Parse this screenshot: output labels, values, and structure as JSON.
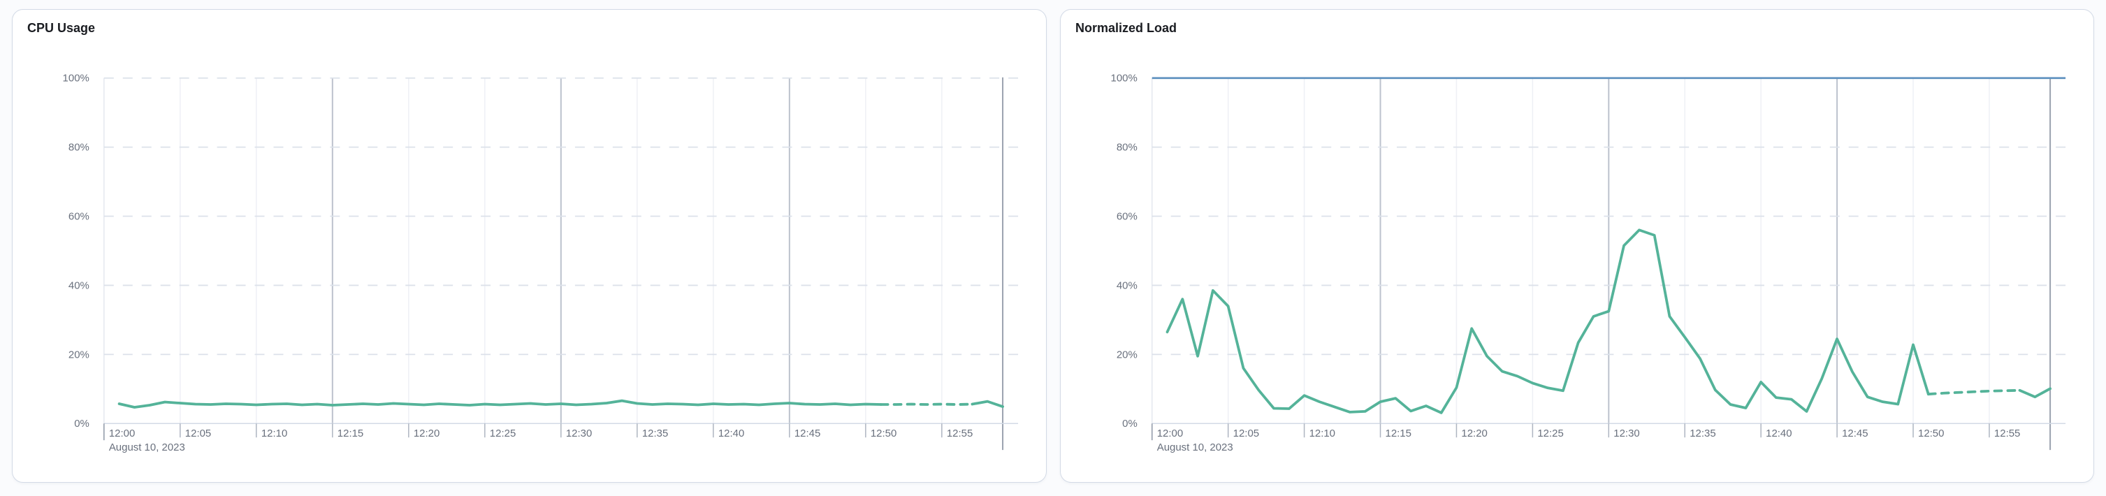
{
  "page": {
    "background_color": "#fafbfd",
    "panel_border_color": "#d3dae6",
    "panel_background_color": "#ffffff"
  },
  "chart_data": [
    {
      "type": "line",
      "title": "CPU Usage",
      "date_label": "August 10, 2023",
      "ylim": [
        0,
        100
      ],
      "legend": "none",
      "grid": "horizontal dashed gridlines every 20%; vertical gridlines every 5 minutes, darker at quarter hours and chart end",
      "y_axis": {
        "tick_values": [
          0,
          20,
          40,
          60,
          80,
          100
        ],
        "tick_labels": [
          "0%",
          "20%",
          "40%",
          "60%",
          "80%",
          "100%"
        ]
      },
      "x_axis": {
        "tick_minutes": [
          0,
          5,
          10,
          15,
          20,
          25,
          30,
          35,
          40,
          45,
          50,
          55
        ],
        "tick_labels": [
          "12:00",
          "12:05",
          "12:10",
          "12:15",
          "12:20",
          "12:25",
          "12:30",
          "12:35",
          "12:40",
          "12:45",
          "12:50",
          "12:55"
        ],
        "major_gridline_minutes": [
          15,
          30,
          45
        ],
        "end_line_minute": 59
      },
      "series": [
        {
          "name": "CPU Usage",
          "color": "#54b399",
          "x_minutes_after_1200": [
            1,
            2,
            3,
            4,
            5,
            6,
            7,
            8,
            9,
            10,
            11,
            12,
            13,
            14,
            15,
            16,
            17,
            18,
            19,
            20,
            21,
            22,
            23,
            24,
            25,
            26,
            27,
            28,
            29,
            30,
            31,
            32,
            33,
            34,
            35,
            36,
            37,
            38,
            39,
            40,
            41,
            42,
            43,
            44,
            45,
            46,
            47,
            48,
            49,
            50,
            51,
            52,
            53,
            54,
            55,
            56,
            57,
            58,
            59
          ],
          "values_percent": [
            5.7,
            4.7,
            5.3,
            6.2,
            5.9,
            5.6,
            5.5,
            5.7,
            5.6,
            5.4,
            5.6,
            5.7,
            5.4,
            5.6,
            5.3,
            5.5,
            5.7,
            5.5,
            5.8,
            5.6,
            5.4,
            5.7,
            5.5,
            5.3,
            5.6,
            5.4,
            5.6,
            5.8,
            5.5,
            5.7,
            5.4,
            5.6,
            5.9,
            6.6,
            5.8,
            5.5,
            5.7,
            5.6,
            5.4,
            5.7,
            5.5,
            5.6,
            5.4,
            5.7,
            5.9,
            5.6,
            5.5,
            5.7,
            5.4,
            5.6,
            5.5,
            5.5,
            5.6,
            5.5,
            5.6,
            5.5,
            5.6,
            6.4,
            4.9
          ],
          "dashed_segment_minutes": [
            51,
            57
          ]
        }
      ]
    },
    {
      "type": "line",
      "title": "Normalized Load",
      "date_label": "August 10, 2023",
      "ylim": [
        0,
        100
      ],
      "legend": "none",
      "grid": "horizontal dashed gridlines every 20%; vertical gridlines every 5 minutes, darker at quarter hours and chart end",
      "threshold_line": {
        "value_percent": 100,
        "color": "#6092c0"
      },
      "y_axis": {
        "tick_values": [
          0,
          20,
          40,
          60,
          80,
          100
        ],
        "tick_labels": [
          "0%",
          "20%",
          "40%",
          "60%",
          "80%",
          "100%"
        ]
      },
      "x_axis": {
        "tick_minutes": [
          0,
          5,
          10,
          15,
          20,
          25,
          30,
          35,
          40,
          45,
          50,
          55
        ],
        "tick_labels": [
          "12:00",
          "12:05",
          "12:10",
          "12:15",
          "12:20",
          "12:25",
          "12:30",
          "12:35",
          "12:40",
          "12:45",
          "12:50",
          "12:55"
        ],
        "major_gridline_minutes": [
          15,
          30,
          45
        ],
        "end_line_minute": 59
      },
      "series": [
        {
          "name": "Normalized Load",
          "color": "#54b399",
          "x_minutes_after_1200": [
            1,
            2,
            3,
            4,
            5,
            6,
            7,
            8,
            9,
            10,
            11,
            12,
            13,
            14,
            15,
            16,
            17,
            18,
            19,
            20,
            21,
            22,
            23,
            24,
            25,
            26,
            27,
            28,
            29,
            30,
            31,
            32,
            33,
            34,
            35,
            36,
            37,
            38,
            39,
            40,
            41,
            42,
            43,
            44,
            45,
            46,
            47,
            48,
            49,
            50,
            51,
            52,
            53,
            54,
            55,
            56,
            57,
            58,
            59
          ],
          "values_percent": [
            26.5,
            36,
            19.5,
            38.5,
            34,
            16,
            9.7,
            4.4,
            4.3,
            8.1,
            6.3,
            4.8,
            3.3,
            3.5,
            6.3,
            7.3,
            3.6,
            5.1,
            3.1,
            10.4,
            27.5,
            19.5,
            15.1,
            13.7,
            11.7,
            10.3,
            9.5,
            23.4,
            31,
            32.5,
            51.5,
            56,
            54.5,
            31,
            25,
            18.8,
            9.7,
            5.5,
            4.5,
            12,
            7.5,
            7,
            3.5,
            13,
            24.5,
            15,
            7.7,
            6.3,
            5.6,
            22.8,
            8.5,
            8.8,
            9.0,
            9.2,
            9.4,
            9.5,
            9.6,
            7.7,
            10.1
          ],
          "dashed_segment_minutes": [
            51,
            57
          ]
        }
      ]
    }
  ]
}
